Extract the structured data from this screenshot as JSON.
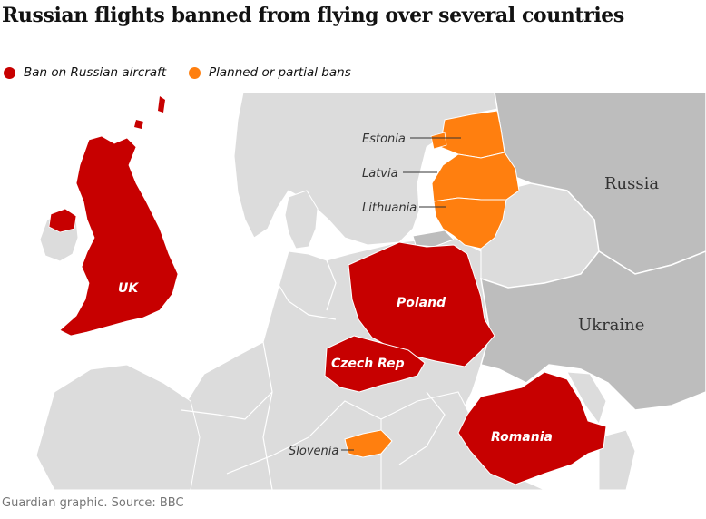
{
  "title": "Russian flights banned from flying over several countries",
  "legend": [
    {
      "label": "Ban on Russian aircraft",
      "color": "#c70000"
    },
    {
      "label": "Planned or partial bans",
      "color": "#ff7f0f"
    }
  ],
  "colors": {
    "sea": "#ffffff",
    "land": "#dcdcdc",
    "neighbour_land": "#bdbdbd",
    "border": "#ffffff",
    "ban": "#c70000",
    "partial": "#ff7f0f"
  },
  "labels": {
    "russia": "Russia",
    "ukraine": "Ukraine",
    "uk": "UK",
    "poland": "Poland",
    "czech": "Czech Rep",
    "romania": "Romania",
    "estonia": "Estonia",
    "latvia": "Latvia",
    "lithuania": "Lithuania",
    "slovenia": "Slovenia"
  },
  "source": "Guardian graphic. Source: BBC"
}
